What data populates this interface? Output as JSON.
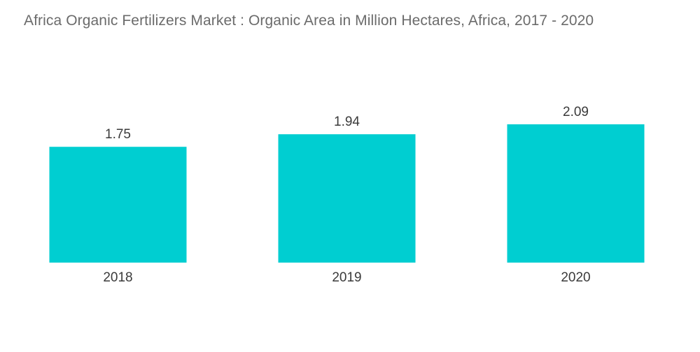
{
  "chart_data": {
    "type": "bar",
    "title": "Africa Organic Fertilizers Market : Organic Area in Million Hectares,  Africa, 2017 - 2020",
    "categories": [
      "2018",
      "2019",
      "2020"
    ],
    "values": [
      1.75,
      1.94,
      2.09
    ],
    "value_labels": [
      "1.75",
      "1.94",
      "2.09"
    ],
    "xlabel": "",
    "ylabel": "",
    "ylim": [
      0,
      2.09
    ],
    "grid": false,
    "legend": "none",
    "bar_color": "#00ced1",
    "text_color": "#3a3a3a",
    "title_color": "#6b6b6b"
  }
}
